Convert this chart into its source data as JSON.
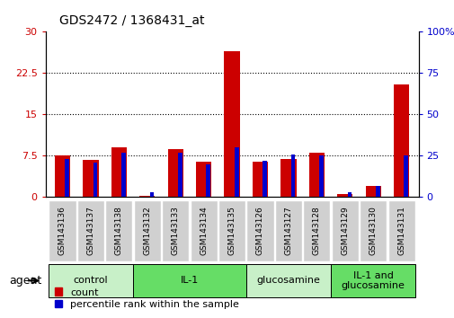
{
  "title": "GDS2472 / 1368431_at",
  "samples": [
    "GSM143136",
    "GSM143137",
    "GSM143138",
    "GSM143132",
    "GSM143133",
    "GSM143134",
    "GSM143135",
    "GSM143126",
    "GSM143127",
    "GSM143128",
    "GSM143129",
    "GSM143130",
    "GSM143131"
  ],
  "count_values": [
    7.5,
    6.8,
    9.0,
    0.3,
    8.7,
    6.5,
    26.5,
    6.5,
    7.0,
    8.0,
    0.5,
    2.0,
    20.5
  ],
  "percentile_values": [
    23,
    21,
    27,
    3,
    27,
    20,
    30,
    22,
    26,
    25,
    3,
    7,
    25
  ],
  "groups": [
    {
      "label": "control",
      "start": 0,
      "end": 3
    },
    {
      "label": "IL-1",
      "start": 3,
      "end": 7
    },
    {
      "label": "glucosamine",
      "start": 7,
      "end": 10
    },
    {
      "label": "IL-1 and\nglucosamine",
      "start": 10,
      "end": 13
    }
  ],
  "group_colors": [
    "#c8f0c8",
    "#66dd66",
    "#c8f0c8",
    "#66dd66"
  ],
  "ylim_left": [
    0,
    30
  ],
  "ylim_right": [
    0,
    100
  ],
  "yticks_left": [
    0,
    7.5,
    15,
    22.5,
    30
  ],
  "yticks_right": [
    0,
    25,
    50,
    75,
    100
  ],
  "left_tick_labels": [
    "0",
    "7.5",
    "15",
    "22.5",
    "30"
  ],
  "right_tick_labels": [
    "0",
    "25",
    "50",
    "75",
    "100%"
  ],
  "left_tick_color": "#cc0000",
  "right_tick_color": "#0000cc",
  "bar_color_red": "#cc0000",
  "bar_color_blue": "#0000cc",
  "red_bar_width": 0.55,
  "blue_bar_width": 0.15,
  "agent_label": "agent",
  "legend_count": "count",
  "legend_percentile": "percentile rank within the sample",
  "background_color": "#ffffff",
  "sample_bg_color": "#d0d0d0"
}
